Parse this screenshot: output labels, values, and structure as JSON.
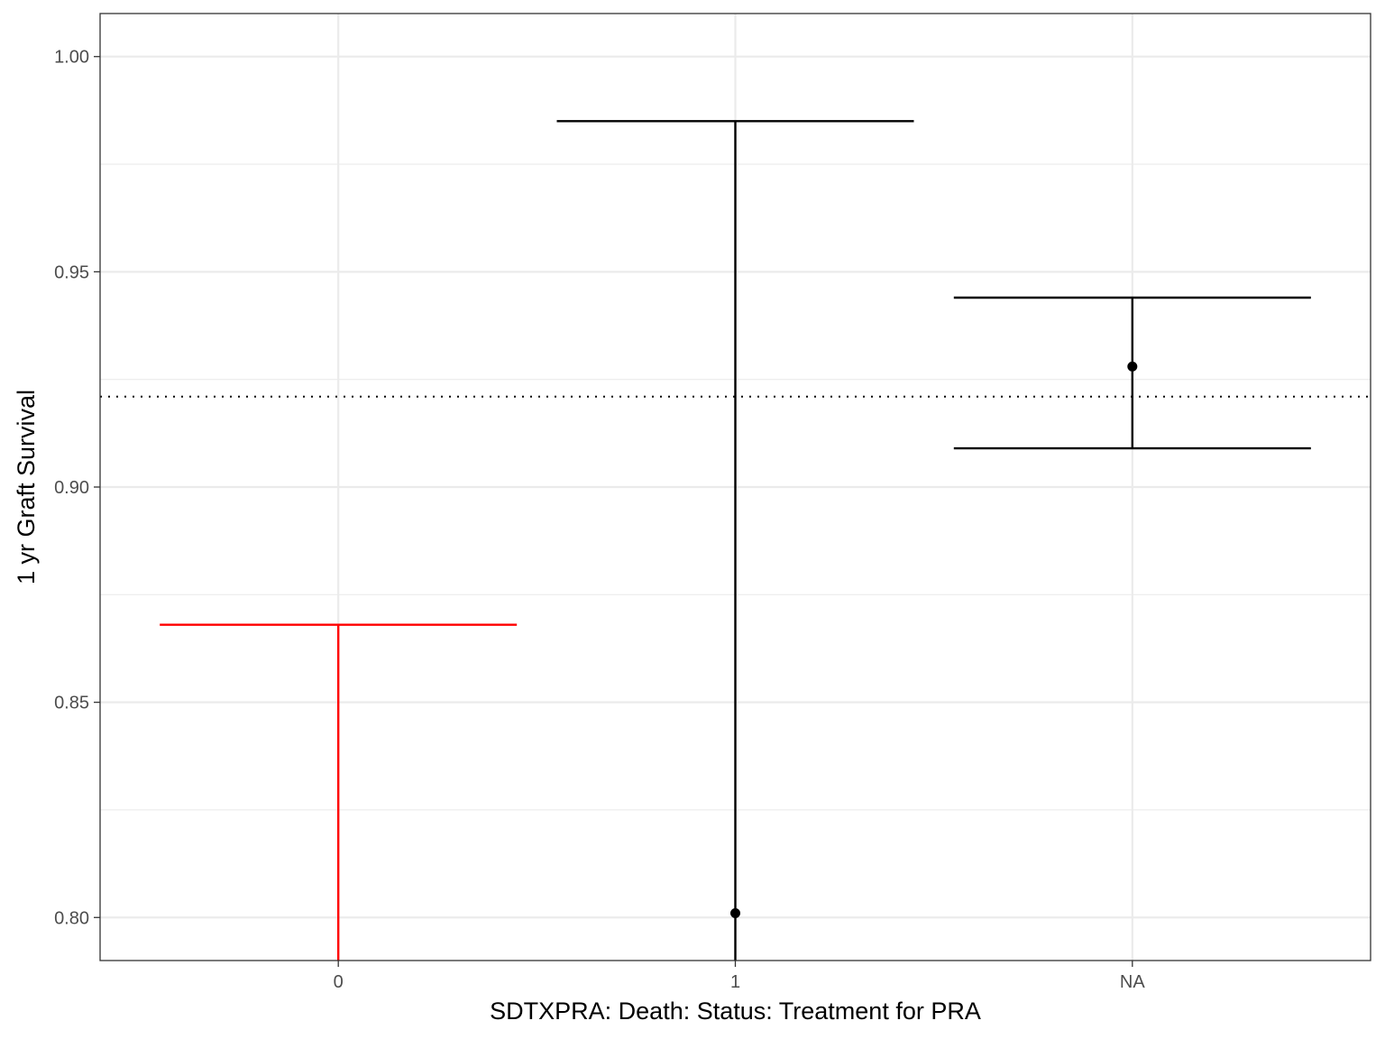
{
  "chart_data": {
    "type": "errorbar",
    "title": "",
    "xlabel": "SDTXPRA: Death: Status: Treatment for PRA",
    "ylabel": "1 yr Graft Survival",
    "categories": [
      "0",
      "1",
      "NA"
    ],
    "ylim": [
      0.79,
      1.01
    ],
    "yticks": [
      0.8,
      0.85,
      0.9,
      0.95,
      1.0
    ],
    "ytick_labels": [
      "0.80",
      "0.85",
      "0.90",
      "0.95",
      "1.00"
    ],
    "grid": true,
    "reference_line": {
      "y": 0.921,
      "style": "dotted"
    },
    "points": [
      {
        "category": "0",
        "estimate": null,
        "lower": null,
        "upper": 0.868,
        "color": "#ff0000"
      },
      {
        "category": "1",
        "estimate": 0.801,
        "lower": null,
        "upper": 0.985,
        "color": "#000000"
      },
      {
        "category": "NA",
        "estimate": 0.928,
        "lower": 0.909,
        "upper": 0.944,
        "color": "#000000"
      }
    ]
  }
}
